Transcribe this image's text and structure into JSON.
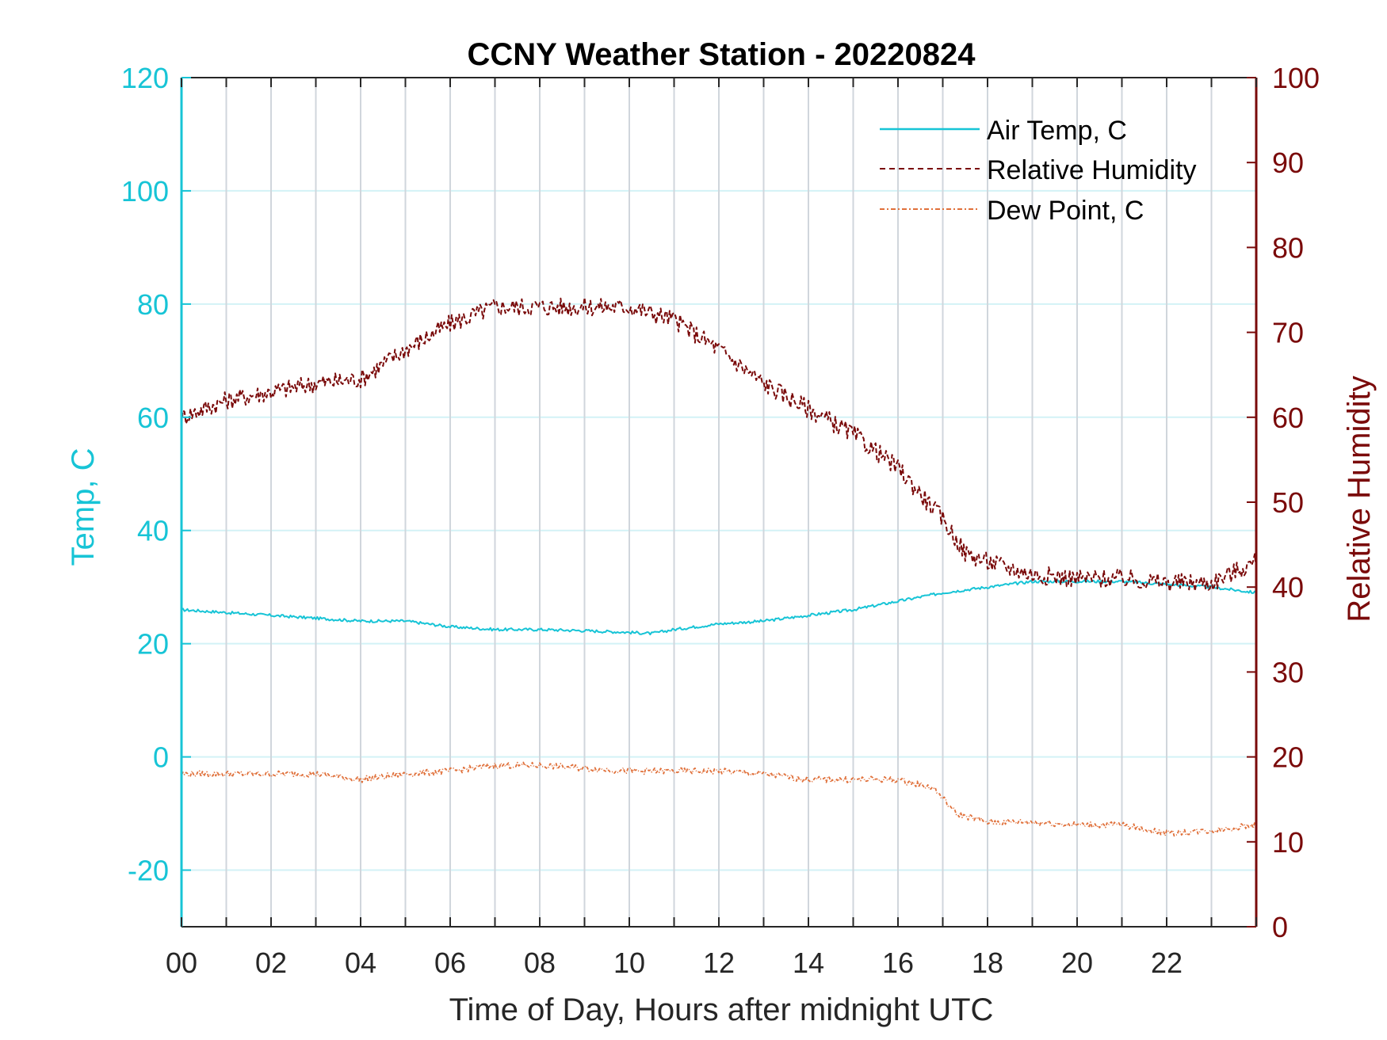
{
  "chart_data": {
    "type": "line",
    "title": "CCNY Weather Station - 20220824",
    "xlabel": "Time of Day, Hours after midnight UTC",
    "ylabel_left": "Temp, C",
    "ylabel_right": "Relative Humidity",
    "xlim": [
      0,
      24
    ],
    "ylim_left": [
      -30,
      120
    ],
    "ylim_right": [
      0,
      100
    ],
    "x_ticks": [
      0,
      2,
      4,
      6,
      8,
      10,
      12,
      14,
      16,
      18,
      20,
      22
    ],
    "x_tick_labels": [
      "00",
      "02",
      "04",
      "06",
      "08",
      "10",
      "12",
      "14",
      "16",
      "18",
      "20",
      "22"
    ],
    "y_left_ticks": [
      120,
      100,
      80,
      60,
      40,
      20,
      0,
      -20
    ],
    "y_left_tick_labels": [
      "120",
      "100",
      "80",
      "60",
      "40",
      "20",
      "0",
      "-20"
    ],
    "y_right_ticks": [
      100,
      90,
      80,
      70,
      60,
      50,
      40,
      30,
      20,
      10,
      0
    ],
    "y_right_tick_labels": [
      "100",
      "90",
      "80",
      "70",
      "60",
      "50",
      "40",
      "30",
      "20",
      "10",
      "0"
    ],
    "grid": true,
    "legend_position": "top-right",
    "colors": {
      "air_temp": "#17c4d6",
      "relative_humidity": "#7a0a0a",
      "dew_point": "#e0703a",
      "left_axis": "#17c4d6",
      "right_axis": "#7a0a0a",
      "grid_vertical": "#d0d6dc",
      "grid_horizontal": "#d3f2f6"
    },
    "series": [
      {
        "name": "Air Temp, C",
        "axis": "left",
        "style": "solid",
        "x": [
          0,
          1,
          2,
          3,
          4,
          5,
          6,
          7,
          8,
          9,
          10,
          10.5,
          11,
          12,
          13,
          14,
          15,
          16,
          17,
          18,
          19,
          20,
          21,
          22,
          23,
          24
        ],
        "values": [
          26,
          25.5,
          25,
          24.5,
          24,
          24,
          23,
          22.5,
          22.5,
          22.3,
          22,
          21.8,
          22.5,
          23.5,
          24,
          25,
          26,
          27.5,
          29,
          30,
          31,
          31,
          31,
          30.5,
          30,
          29
        ]
      },
      {
        "name": "Relative Humidity",
        "axis": "right",
        "style": "dashed",
        "x": [
          0,
          1,
          2,
          3,
          4,
          5,
          6,
          7,
          8,
          9,
          10,
          11,
          12,
          13,
          14,
          15,
          16,
          17,
          17.5,
          18,
          19,
          20,
          21,
          22,
          23,
          24
        ],
        "values": [
          60,
          62,
          63,
          64,
          64.5,
          68,
          71,
          73,
          73,
          73,
          73,
          71.5,
          68,
          64,
          61,
          58,
          54,
          48,
          44,
          43,
          41.5,
          41,
          41,
          40.5,
          40.5,
          43
        ]
      },
      {
        "name": "Dew Point, C",
        "axis": "left",
        "style": "dash-dot",
        "x": [
          0,
          1,
          2,
          3,
          4,
          5,
          6,
          7,
          8,
          9,
          10,
          11,
          12,
          13,
          14,
          15,
          16,
          16.8,
          17.3,
          18,
          19,
          20,
          21,
          22,
          23,
          24
        ],
        "values": [
          -3,
          -3,
          -3,
          -3,
          -4,
          -3,
          -2.5,
          -1.5,
          -1.5,
          -2,
          -2.5,
          -2.5,
          -2.5,
          -3,
          -4,
          -4,
          -4,
          -5.5,
          -10,
          -11.5,
          -11.5,
          -12,
          -12,
          -13.5,
          -13,
          -12
        ]
      }
    ]
  }
}
